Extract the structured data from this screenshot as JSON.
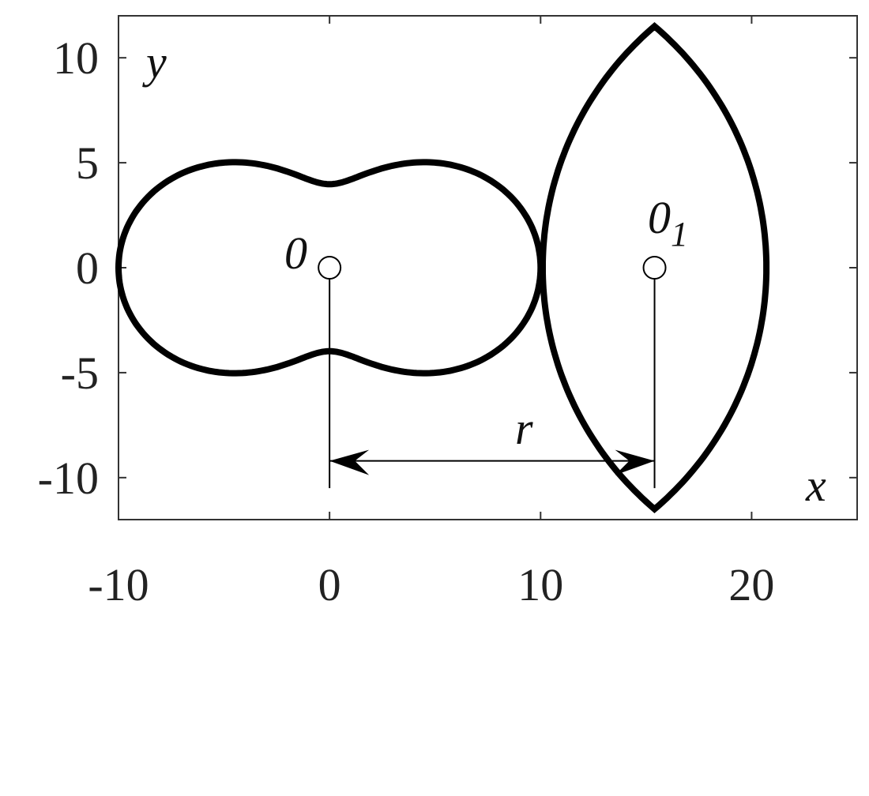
{
  "figure": {
    "xaxis": {
      "label": "x",
      "ticks": [
        -10,
        0,
        10,
        20
      ],
      "range": [
        -10,
        25
      ]
    },
    "yaxis": {
      "label": "y",
      "ticks": [
        10,
        5,
        0,
        -5,
        -10
      ],
      "range": [
        -12,
        12
      ]
    },
    "labels": {
      "origin": "0",
      "origin1": "0",
      "origin1_sub": "1",
      "distance": "r"
    },
    "points": {
      "origin": [
        0,
        0
      ],
      "origin1": [
        15.4,
        0
      ]
    },
    "peanut": {
      "x_extent": [
        -10,
        10
      ],
      "y_max": 5.2,
      "y_waist": 3.9
    },
    "lens": {
      "center_x": 15.4,
      "x_extent": [
        10,
        20.6
      ],
      "y_extent": [
        -11.5,
        11.5
      ]
    },
    "arrow_y": -9.2,
    "line_color": "#000000"
  }
}
